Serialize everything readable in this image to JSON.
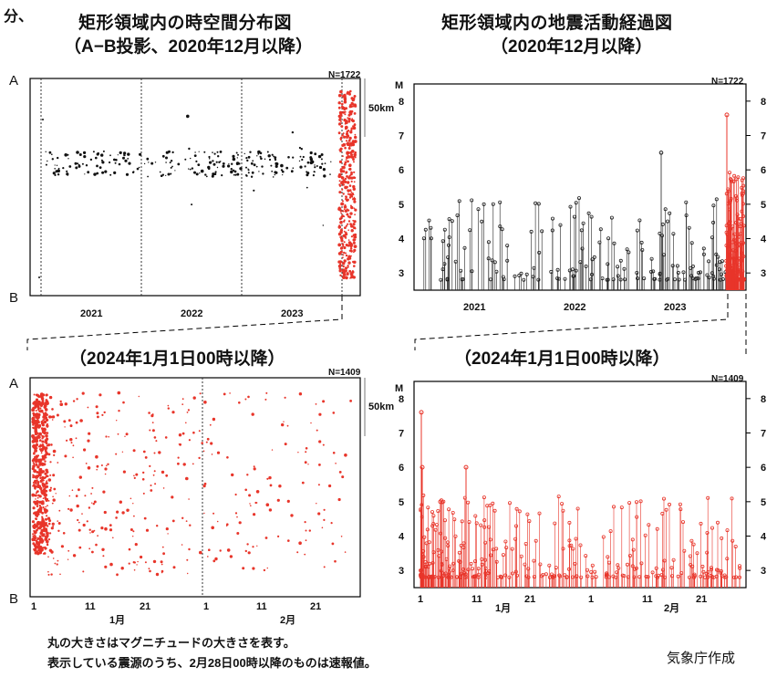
{
  "header": {
    "fragment": "分、",
    "left_title": "矩形領域内の時空間分布図",
    "left_subtitle": "（A−B投影、2020年12月以降）",
    "right_title": "矩形領域内の地震活動経過図",
    "right_subtitle": "（2020年12月以降）"
  },
  "lower_header": {
    "left_subtitle": "（2024年1月1日00時以降）",
    "right_subtitle": "（2024年1月1日00時以降）"
  },
  "panels": {
    "top_left": {
      "n_label": "N=1722",
      "a_label": "A",
      "b_label": "B",
      "scale_label": "50km",
      "x_ticks": [
        "2021",
        "2022",
        "2023"
      ]
    },
    "top_right": {
      "n_label": "N=1722",
      "m_label": "M",
      "y_ticks": [
        "3",
        "4",
        "5",
        "6",
        "7",
        "8"
      ],
      "x_ticks": [
        "2021",
        "2022",
        "2023"
      ]
    },
    "bottom_left": {
      "n_label": "N=1409",
      "a_label": "A",
      "b_label": "B",
      "scale_label": "50km",
      "x_ticks": [
        "1",
        "11",
        "21",
        "1",
        "11",
        "21"
      ],
      "month_labels": [
        "1月",
        "2月"
      ]
    },
    "bottom_right": {
      "n_label": "N=1409",
      "m_label": "M",
      "y_ticks": [
        "3",
        "4",
        "5",
        "6",
        "7",
        "8"
      ],
      "x_ticks": [
        "1",
        "11",
        "21",
        "1",
        "11",
        "21"
      ],
      "month_labels": [
        "1月",
        "2月"
      ]
    }
  },
  "footer": {
    "note_line1": "丸の大きさはマグニチュードの大きさを表す。",
    "note_line2": "表示している震源のうち、2月28日00時以降のものは速報値。",
    "credit": "気象庁作成"
  },
  "colors": {
    "recent": "#e8352a",
    "older": "#111111"
  },
  "chart_data": [
    {
      "type": "scatter",
      "title": "矩形領域内の時空間分布図",
      "subtitle": "（A−B投影、2020年12月以降）",
      "n": 1722,
      "x_range": [
        "2020-12",
        "2024-02"
      ],
      "y_axis": [
        "A",
        "B"
      ],
      "x_ticks": [
        "2021",
        "2022",
        "2023"
      ],
      "grid": "vertical dotted lines at year boundaries",
      "series": [
        {
          "color": "older",
          "period": "2020-12 to 2023-12"
        },
        {
          "color": "recent",
          "period": "2024-01-01 onward"
        }
      ]
    },
    {
      "type": "line",
      "title": "矩形領域内の地震活動経過図",
      "subtitle": "（2020年12月以降）",
      "n": 1722,
      "ylabel": "M",
      "ylim": [
        2.5,
        8.5
      ],
      "x_ticks": [
        "2021",
        "2022",
        "2023"
      ],
      "y_ticks": [
        3,
        4,
        5,
        6,
        7,
        8
      ],
      "max_magnitude": 7.6,
      "notable_events": [
        {
          "x": "2022-12",
          "m": 6.5
        },
        {
          "x": "2024-01-01",
          "m": 7.6
        }
      ]
    },
    {
      "type": "scatter",
      "subtitle": "（2024年1月1日00時以降）",
      "n": 1409,
      "x_range": [
        "2024-01-01",
        "2024-02-29"
      ],
      "x_ticks": [
        "1",
        "11",
        "21",
        "1",
        "11",
        "21"
      ],
      "month_labels": [
        "1月",
        "2月"
      ],
      "y_axis": [
        "A",
        "B"
      ]
    },
    {
      "type": "line",
      "subtitle": "（2024年1月1日00時以降）",
      "n": 1409,
      "ylabel": "M",
      "ylim": [
        2.5,
        8.5
      ],
      "x_ticks": [
        "1",
        "11",
        "21",
        "1",
        "11",
        "21"
      ],
      "month_labels": [
        "1月",
        "2月"
      ],
      "y_ticks": [
        3,
        4,
        5,
        6,
        7,
        8
      ],
      "max_magnitude": 7.6,
      "notable_events": [
        {
          "day": 1,
          "m": 7.6
        },
        {
          "day": 9,
          "m": 6.0
        }
      ]
    }
  ]
}
